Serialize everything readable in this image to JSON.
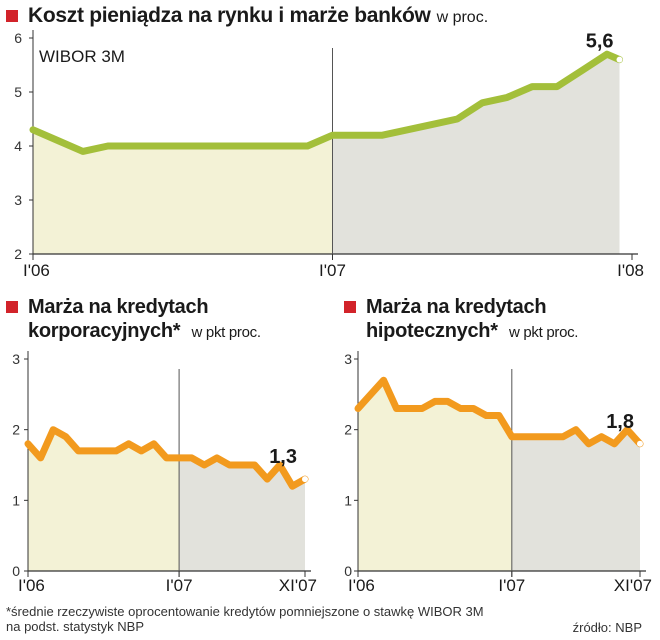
{
  "main_title": "Koszt pieniądza na rynku i marże banków",
  "main_unit": "w proc.",
  "colors": {
    "green_line": "#a3bf3a",
    "orange_line": "#f29a1e",
    "shade_first": "#f3f2d6",
    "shade_second": "#e2e2dc",
    "bullet": "#d2232a"
  },
  "chart_data": [
    {
      "type": "line",
      "title": "",
      "inner_label": "WIBOR 3M",
      "ylim": [
        2,
        6
      ],
      "yticks": [
        "2",
        "3",
        "4",
        "5",
        "6"
      ],
      "xlim": [
        0,
        24
      ],
      "xticks": [
        {
          "label": "I'06",
          "x": 0
        },
        {
          "label": "I'07",
          "x": 12
        },
        {
          "label": "I'08",
          "x": 24
        }
      ],
      "shade_split": 12,
      "x": [
        0,
        1,
        2,
        3,
        4,
        5,
        6,
        7,
        8,
        9,
        10,
        11,
        12,
        13,
        14,
        15,
        16,
        17,
        18,
        19,
        20,
        21,
        22,
        23
      ],
      "values": [
        4.3,
        4.1,
        3.9,
        4.0,
        4.0,
        4.0,
        4.0,
        4.0,
        4.0,
        4.0,
        4.0,
        4.0,
        4.2,
        4.2,
        4.2,
        4.3,
        4.4,
        4.5,
        4.8,
        4.9,
        5.1,
        5.1,
        5.4,
        5.7
      ],
      "last_point": {
        "x": 23.5,
        "value": 5.6
      },
      "end_label": "5,6"
    },
    {
      "type": "line",
      "title": "Marża na kredytach korporacyjnych*",
      "unit": "w pkt proc.",
      "ylim": [
        0,
        3
      ],
      "yticks": [
        "0",
        "1",
        "2",
        "3"
      ],
      "xlim": [
        0,
        22
      ],
      "xticks": [
        {
          "label": "I'06",
          "x": 0
        },
        {
          "label": "I'07",
          "x": 12
        },
        {
          "label": "XI'07",
          "x": 22
        }
      ],
      "shade_split": 12,
      "x": [
        0,
        1,
        2,
        3,
        4,
        5,
        6,
        7,
        8,
        9,
        10,
        11,
        12,
        13,
        14,
        15,
        16,
        17,
        18,
        19,
        20,
        21,
        22
      ],
      "values": [
        1.8,
        1.6,
        2.0,
        1.9,
        1.7,
        1.7,
        1.7,
        1.7,
        1.8,
        1.7,
        1.8,
        1.6,
        1.6,
        1.6,
        1.5,
        1.6,
        1.5,
        1.5,
        1.5,
        1.3,
        1.5,
        1.2,
        1.3
      ],
      "end_label": "1,3"
    },
    {
      "type": "line",
      "title": "Marża na kredytach hipotecznych*",
      "unit": "w pkt proc.",
      "ylim": [
        0,
        3
      ],
      "yticks": [
        "0",
        "1",
        "2",
        "3"
      ],
      "xlim": [
        0,
        22
      ],
      "xticks": [
        {
          "label": "I'06",
          "x": 0
        },
        {
          "label": "I'07",
          "x": 12
        },
        {
          "label": "XI'07",
          "x": 22
        }
      ],
      "shade_split": 12,
      "x": [
        0,
        1,
        2,
        3,
        4,
        5,
        6,
        7,
        8,
        9,
        10,
        11,
        12,
        13,
        14,
        15,
        16,
        17,
        18,
        19,
        20,
        21,
        22
      ],
      "values": [
        2.3,
        2.5,
        2.7,
        2.3,
        2.3,
        2.3,
        2.4,
        2.4,
        2.3,
        2.3,
        2.2,
        2.2,
        1.9,
        1.9,
        1.9,
        1.9,
        1.9,
        2.0,
        1.8,
        1.9,
        1.8,
        2.0,
        1.8
      ],
      "end_label": "1,8"
    }
  ],
  "footnote_line1": "*średnie rzeczywiste oprocentowanie kredytów pomniejszone o stawkę WIBOR 3M",
  "footnote_line2": "na podst. statystyk NBP",
  "source": "źródło: NBP"
}
